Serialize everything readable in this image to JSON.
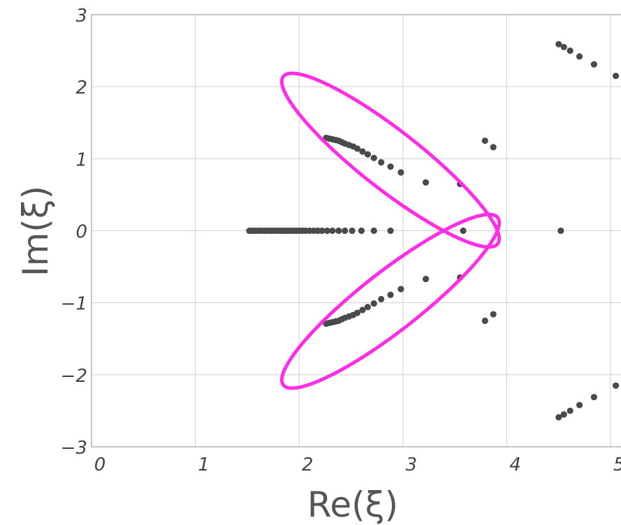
{
  "chart_data": {
    "type": "scatter",
    "title": "",
    "xlabel": "Re(ξ)",
    "ylabel": "Im(ξ)",
    "xlim": [
      0,
      5.1
    ],
    "ylim": [
      -3,
      3
    ],
    "x_ticks": [
      0,
      1,
      2,
      3,
      4,
      5
    ],
    "y_ticks": [
      -3,
      -2,
      -1,
      0,
      1,
      2,
      3
    ],
    "x_tick_labels": [
      "0",
      "1",
      "2",
      "3",
      "4",
      "5"
    ],
    "y_tick_labels": [
      "−3",
      "−2",
      "−1",
      "0",
      "1",
      "2",
      "3"
    ],
    "grid": true,
    "marker_color": "#4a4a4a",
    "highlight_color": "#ff2de6",
    "series": [
      {
        "points": [
          [
            1.52,
            0
          ],
          [
            1.55,
            0
          ],
          [
            1.58,
            0
          ],
          [
            1.61,
            0
          ],
          [
            1.64,
            0
          ],
          [
            1.67,
            0
          ],
          [
            1.7,
            0
          ],
          [
            1.73,
            0
          ],
          [
            1.76,
            0
          ],
          [
            1.79,
            0
          ],
          [
            1.82,
            0
          ],
          [
            1.85,
            0
          ],
          [
            1.88,
            0
          ],
          [
            1.91,
            0
          ],
          [
            1.94,
            0
          ],
          [
            1.97,
            0
          ],
          [
            2.0,
            0
          ],
          [
            2.03,
            0
          ],
          [
            2.06,
            0
          ],
          [
            2.1,
            0
          ],
          [
            2.14,
            0
          ],
          [
            2.18,
            0
          ],
          [
            2.22,
            0
          ],
          [
            2.27,
            0
          ],
          [
            2.32,
            0
          ],
          [
            2.38,
            0
          ],
          [
            2.44,
            0
          ],
          [
            2.51,
            0
          ],
          [
            2.6,
            0
          ],
          [
            2.72,
            0
          ],
          [
            2.88,
            0
          ],
          [
            3.58,
            0
          ],
          [
            4.52,
            0
          ],
          [
            2.26,
            1.29
          ],
          [
            2.29,
            1.28
          ],
          [
            2.32,
            1.27
          ],
          [
            2.35,
            1.26
          ],
          [
            2.38,
            1.25
          ],
          [
            2.41,
            1.23
          ],
          [
            2.44,
            1.21
          ],
          [
            2.48,
            1.19
          ],
          [
            2.52,
            1.17
          ],
          [
            2.56,
            1.14
          ],
          [
            2.61,
            1.1
          ],
          [
            2.66,
            1.06
          ],
          [
            2.72,
            1.01
          ],
          [
            2.79,
            0.95
          ],
          [
            2.88,
            0.89
          ],
          [
            2.98,
            0.81
          ],
          [
            3.22,
            0.67
          ],
          [
            3.55,
            0.65
          ],
          [
            2.26,
            -1.29
          ],
          [
            2.29,
            -1.28
          ],
          [
            2.32,
            -1.27
          ],
          [
            2.35,
            -1.26
          ],
          [
            2.38,
            -1.25
          ],
          [
            2.41,
            -1.23
          ],
          [
            2.44,
            -1.21
          ],
          [
            2.48,
            -1.19
          ],
          [
            2.52,
            -1.17
          ],
          [
            2.56,
            -1.14
          ],
          [
            2.61,
            -1.1
          ],
          [
            2.66,
            -1.06
          ],
          [
            2.72,
            -1.01
          ],
          [
            2.79,
            -0.95
          ],
          [
            2.88,
            -0.89
          ],
          [
            2.98,
            -0.81
          ],
          [
            3.22,
            -0.67
          ],
          [
            3.55,
            -0.65
          ],
          [
            3.79,
            1.25
          ],
          [
            3.87,
            1.16
          ],
          [
            3.79,
            -1.25
          ],
          [
            3.87,
            -1.16
          ],
          [
            4.5,
            2.59
          ],
          [
            4.55,
            2.55
          ],
          [
            4.61,
            2.5
          ],
          [
            4.7,
            2.42
          ],
          [
            4.84,
            2.31
          ],
          [
            5.05,
            2.15
          ],
          [
            4.5,
            -2.59
          ],
          [
            4.55,
            -2.55
          ],
          [
            4.61,
            -2.5
          ],
          [
            4.7,
            -2.42
          ],
          [
            4.84,
            -2.31
          ],
          [
            5.05,
            -2.15
          ]
        ]
      }
    ],
    "highlight_ellipses": [
      {
        "center": [
          2.88,
          0.98
        ],
        "semi_axes": [
          1.31,
          0.41
        ],
        "angle_deg": 38
      },
      {
        "center": [
          2.88,
          -0.98
        ],
        "semi_axes": [
          1.31,
          0.41
        ],
        "angle_deg": -38
      }
    ]
  }
}
